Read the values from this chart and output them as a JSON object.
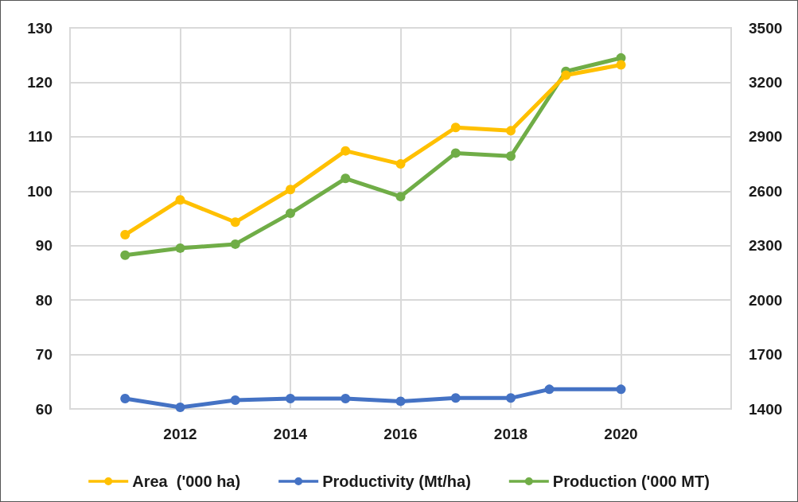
{
  "chart_data": {
    "type": "line",
    "x": [
      2011,
      2012,
      2013,
      2014,
      2015,
      2016,
      2017,
      2018,
      2019,
      2020
    ],
    "xlim": [
      2010,
      2022
    ],
    "xticks": [
      2012,
      2014,
      2016,
      2018,
      2020
    ],
    "ylim": [
      60,
      130
    ],
    "yticks": [
      60,
      70,
      80,
      90,
      100,
      110,
      120,
      130
    ],
    "y2lim": [
      1400,
      3500
    ],
    "y2ticks": [
      1400,
      1700,
      2000,
      2300,
      2600,
      2900,
      3200,
      3500
    ],
    "series": [
      {
        "name": "Area  ('000 ha)",
        "color": "#ffc000",
        "values": [
          92,
          98.4,
          94.3,
          100.3,
          107.4,
          105,
          111.7,
          111.1,
          121.3,
          123.2
        ]
      },
      {
        "name": "Productivity (Mt/ha)",
        "color": "#4472c4",
        "x": [
          2011,
          2012,
          2013,
          2014,
          2015,
          2016,
          2017,
          2018,
          2018.7,
          2020
        ],
        "values": [
          61.9,
          60.3,
          61.6,
          61.9,
          61.9,
          61.4,
          62,
          62,
          63.6,
          63.6
        ]
      },
      {
        "name": "Production ('000 MT)",
        "color": "#70ad47",
        "axis": "y2",
        "values": [
          2247,
          2286,
          2308,
          2478,
          2670,
          2570,
          2810,
          2793,
          3260,
          3334
        ]
      }
    ],
    "grid": true,
    "legend": "bottom",
    "marker": "circle",
    "line_style": "solid"
  }
}
